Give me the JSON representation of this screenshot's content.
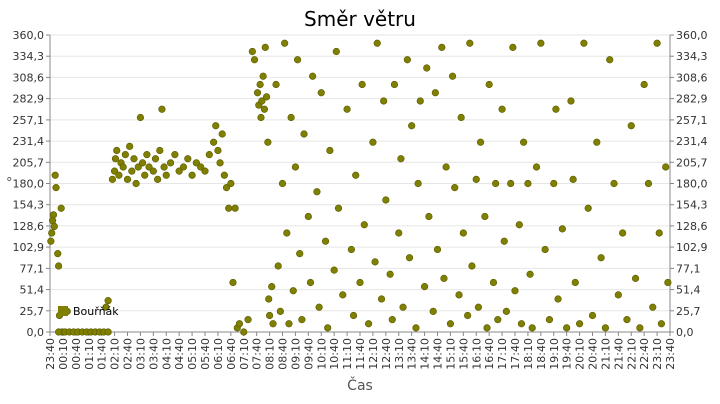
{
  "chart_data": {
    "type": "scatter",
    "title": "Směr větru",
    "x_label": "Čas",
    "y_label": "°",
    "xlim": [
      0,
      1440
    ],
    "xticks": [
      {
        "value": 0,
        "label": "23:40"
      },
      {
        "value": 30,
        "label": "00:10"
      },
      {
        "value": 60,
        "label": "00:40"
      },
      {
        "value": 90,
        "label": "01:10"
      },
      {
        "value": 120,
        "label": "01:40"
      },
      {
        "value": 150,
        "label": "02:10"
      },
      {
        "value": 180,
        "label": "02:40"
      },
      {
        "value": 210,
        "label": "03:10"
      },
      {
        "value": 240,
        "label": "03:40"
      },
      {
        "value": 270,
        "label": "04:10"
      },
      {
        "value": 300,
        "label": "04:40"
      },
      {
        "value": 330,
        "label": "05:10"
      },
      {
        "value": 360,
        "label": "05:40"
      },
      {
        "value": 390,
        "label": "06:10"
      },
      {
        "value": 420,
        "label": "06:40"
      },
      {
        "value": 450,
        "label": "07:10"
      },
      {
        "value": 480,
        "label": "07:40"
      },
      {
        "value": 510,
        "label": "08:10"
      },
      {
        "value": 540,
        "label": "08:40"
      },
      {
        "value": 570,
        "label": "09:10"
      },
      {
        "value": 600,
        "label": "09:40"
      },
      {
        "value": 630,
        "label": "10:10"
      },
      {
        "value": 660,
        "label": "10:40"
      },
      {
        "value": 690,
        "label": "11:10"
      },
      {
        "value": 720,
        "label": "11:40"
      },
      {
        "value": 750,
        "label": "12:10"
      },
      {
        "value": 780,
        "label": "12:40"
      },
      {
        "value": 810,
        "label": "13:10"
      },
      {
        "value": 840,
        "label": "13:40"
      },
      {
        "value": 870,
        "label": "14:10"
      },
      {
        "value": 900,
        "label": "14:40"
      },
      {
        "value": 930,
        "label": "15:10"
      },
      {
        "value": 960,
        "label": "15:40"
      },
      {
        "value": 990,
        "label": "16:10"
      },
      {
        "value": 1020,
        "label": "16:40"
      },
      {
        "value": 1050,
        "label": "17:10"
      },
      {
        "value": 1080,
        "label": "17:40"
      },
      {
        "value": 1110,
        "label": "18:10"
      },
      {
        "value": 1140,
        "label": "18:40"
      },
      {
        "value": 1170,
        "label": "19:10"
      },
      {
        "value": 1200,
        "label": "19:40"
      },
      {
        "value": 1230,
        "label": "20:10"
      },
      {
        "value": 1260,
        "label": "20:40"
      },
      {
        "value": 1290,
        "label": "21:10"
      },
      {
        "value": 1320,
        "label": "21:40"
      },
      {
        "value": 1350,
        "label": "22:10"
      },
      {
        "value": 1380,
        "label": "22:40"
      },
      {
        "value": 1410,
        "label": "23:10"
      },
      {
        "value": 1440,
        "label": "23:40"
      }
    ],
    "ylim": [
      0,
      360
    ],
    "yticks": [
      {
        "value": 0,
        "label": "0,0"
      },
      {
        "value": 25.7,
        "label": "25,7"
      },
      {
        "value": 51.4,
        "label": "51,4"
      },
      {
        "value": 77.1,
        "label": "77,1"
      },
      {
        "value": 102.9,
        "label": "102,9"
      },
      {
        "value": 128.6,
        "label": "128,6"
      },
      {
        "value": 154.3,
        "label": "154,3"
      },
      {
        "value": 180,
        "label": "180,0"
      },
      {
        "value": 205.7,
        "label": "205,7"
      },
      {
        "value": 231.4,
        "label": "231,4"
      },
      {
        "value": 257.1,
        "label": "257,1"
      },
      {
        "value": 282.9,
        "label": "282,9"
      },
      {
        "value": 308.6,
        "label": "308,6"
      },
      {
        "value": 334.3,
        "label": "334,3"
      },
      {
        "value": 360,
        "label": "360,0"
      }
    ],
    "grid": true,
    "legend": "lower-left",
    "x": [
      2,
      4,
      6,
      8,
      10,
      12,
      14,
      18,
      20,
      26,
      22,
      28,
      20,
      35,
      45,
      55,
      65,
      75,
      85,
      95,
      105,
      115,
      125,
      135,
      40,
      130,
      135,
      145,
      150,
      152,
      155,
      160,
      165,
      170,
      175,
      180,
      185,
      190,
      195,
      200,
      205,
      210,
      215,
      220,
      225,
      230,
      240,
      245,
      250,
      255,
      260,
      265,
      270,
      280,
      290,
      300,
      310,
      320,
      330,
      340,
      350,
      360,
      370,
      380,
      385,
      390,
      395,
      400,
      405,
      410,
      415,
      420,
      425,
      430,
      435,
      440,
      450,
      460,
      470,
      475,
      482,
      485,
      488,
      490,
      492,
      495,
      498,
      500,
      503,
      506,
      508,
      510,
      515,
      518,
      525,
      530,
      535,
      540,
      545,
      550,
      555,
      560,
      565,
      570,
      575,
      580,
      585,
      590,
      600,
      605,
      610,
      620,
      625,
      630,
      640,
      645,
      650,
      660,
      665,
      670,
      680,
      690,
      700,
      705,
      710,
      720,
      725,
      730,
      740,
      750,
      755,
      760,
      770,
      775,
      780,
      790,
      795,
      800,
      810,
      815,
      820,
      830,
      835,
      840,
      850,
      855,
      860,
      870,
      875,
      880,
      890,
      895,
      900,
      910,
      915,
      920,
      930,
      935,
      940,
      950,
      955,
      960,
      970,
      975,
      980,
      990,
      995,
      1000,
      1010,
      1015,
      1020,
      1030,
      1035,
      1040,
      1050,
      1055,
      1060,
      1070,
      1075,
      1080,
      1090,
      1095,
      1100,
      1110,
      1115,
      1120,
      1130,
      1140,
      1150,
      1160,
      1170,
      1175,
      1180,
      1190,
      1200,
      1210,
      1215,
      1220,
      1230,
      1240,
      1250,
      1260,
      1270,
      1280,
      1290,
      1300,
      1310,
      1320,
      1330,
      1340,
      1350,
      1360,
      1370,
      1380,
      1390,
      1400,
      1410,
      1415,
      1420,
      1430,
      1435
    ],
    "series": [
      {
        "name": "Bouřňák",
        "color": "#7f7f00",
        "values": [
          110,
          120,
          135,
          142,
          128,
          190,
          175,
          95,
          80,
          150,
          20,
          0,
          0,
          0,
          0,
          0,
          0,
          0,
          0,
          0,
          0,
          0,
          0,
          0,
          25,
          30,
          38,
          185,
          195,
          210,
          220,
          190,
          205,
          200,
          215,
          185,
          225,
          195,
          210,
          180,
          200,
          260,
          205,
          190,
          215,
          200,
          195,
          210,
          185,
          220,
          270,
          200,
          190,
          205,
          215,
          195,
          200,
          210,
          190,
          205,
          200,
          195,
          215,
          230,
          250,
          220,
          205,
          240,
          190,
          175,
          150,
          180,
          60,
          150,
          5,
          10,
          0,
          15,
          340,
          330,
          290,
          275,
          300,
          260,
          280,
          310,
          270,
          345,
          285,
          230,
          40,
          20,
          55,
          10,
          300,
          80,
          25,
          180,
          350,
          120,
          10,
          260,
          50,
          200,
          330,
          95,
          15,
          240,
          140,
          60,
          310,
          170,
          30,
          290,
          110,
          5,
          220,
          75,
          340,
          150,
          45,
          270,
          100,
          20,
          190,
          60,
          300,
          130,
          10,
          230,
          85,
          350,
          40,
          280,
          160,
          70,
          15,
          300,
          120,
          210,
          30,
          330,
          90,
          250,
          5,
          180,
          280,
          55,
          320,
          140,
          25,
          290,
          100,
          345,
          65,
          200,
          10,
          310,
          175,
          45,
          260,
          120,
          20,
          350,
          80,
          185,
          30,
          230,
          140,
          5,
          300,
          60,
          180,
          15,
          270,
          110,
          25,
          180,
          345,
          50,
          130,
          10,
          230,
          180,
          70,
          5,
          200,
          350,
          100,
          15,
          180,
          270,
          40,
          125,
          5,
          280,
          185,
          60,
          10,
          350,
          150,
          20,
          230,
          90,
          5,
          330,
          180,
          45,
          120,
          15,
          250,
          65,
          5,
          300,
          180,
          30,
          350,
          120,
          10,
          200,
          60
        ]
      }
    ]
  }
}
